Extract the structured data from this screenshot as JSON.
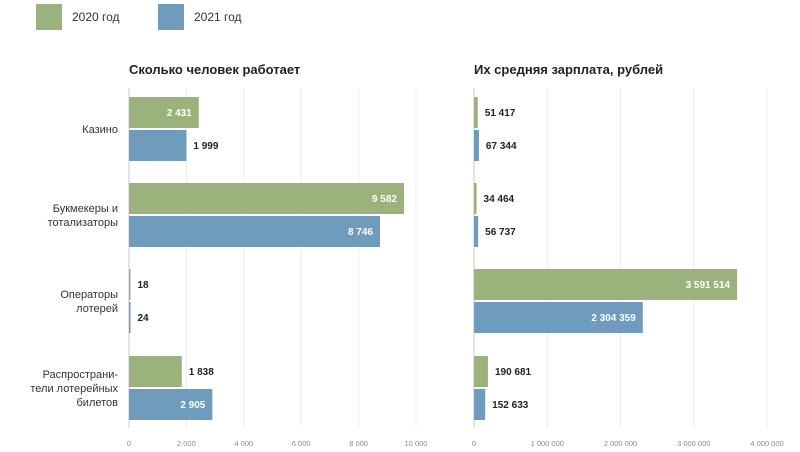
{
  "legend": {
    "items": [
      {
        "label": "2020 год",
        "color": "#9cb27d"
      },
      {
        "label": "2021 год",
        "color": "#6f9bbd"
      }
    ]
  },
  "chart_data": [
    {
      "type": "bar",
      "orientation": "horizontal",
      "title": "Сколько человек работает",
      "categories": [
        [
          "Казино"
        ],
        [
          "Букмекеры и",
          "тотализаторы"
        ],
        [
          "Операторы",
          "лотерей"
        ],
        [
          "Распространи-",
          "тели лотерейных",
          "билетов"
        ]
      ],
      "series": [
        {
          "name": "2020 год",
          "color": "#9cb27d",
          "values": [
            2431,
            9582,
            18,
            1838
          ],
          "labels": [
            "2 431",
            "9 582",
            "18",
            "1 838"
          ]
        },
        {
          "name": "2021 год",
          "color": "#6f9bbd",
          "values": [
            1999,
            8746,
            24,
            2905
          ],
          "labels": [
            "1 999",
            "8 746",
            "24",
            "2 905"
          ]
        }
      ],
      "xlim": [
        0,
        10000
      ],
      "ticks": [
        0,
        2000,
        4000,
        6000,
        8000,
        10000
      ],
      "tick_labels": [
        "0",
        "2 000",
        "4 000",
        "6 000",
        "8 000",
        "10 000"
      ],
      "grid": true,
      "legend": "top-left"
    },
    {
      "type": "bar",
      "orientation": "horizontal",
      "title": "Их средняя зарплата, рублей",
      "series": [
        {
          "name": "2020 год",
          "color": "#9cb27d",
          "values": [
            51417,
            34464,
            3591514,
            190681
          ],
          "labels": [
            "51 417",
            "34 464",
            "3 591 514",
            "190 681"
          ]
        },
        {
          "name": "2021 год",
          "color": "#6f9bbd",
          "values": [
            67344,
            56737,
            2304359,
            152633
          ],
          "labels": [
            "67 344",
            "56 737",
            "2 304 359",
            "152 633"
          ]
        }
      ],
      "xlim": [
        0,
        4000000
      ],
      "ticks": [
        0,
        1000000,
        2000000,
        3000000,
        4000000
      ],
      "tick_labels": [
        "0",
        "1 000 000",
        "2 000 000",
        "3 000 000",
        "4 000 000"
      ],
      "grid": true
    }
  ]
}
